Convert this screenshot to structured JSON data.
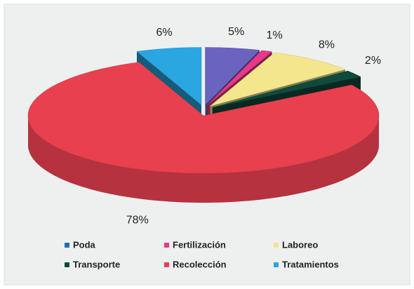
{
  "chart_data": {
    "type": "pie3d",
    "categories": [
      "Poda",
      "Fertilización",
      "Laboreo",
      "Transporte",
      "Recolección",
      "Tratamientos"
    ],
    "values": [
      5,
      1,
      8,
      2,
      78,
      6
    ],
    "value_labels": [
      "5%",
      "1%",
      "8%",
      "2%",
      "78%",
      "6%"
    ],
    "colors": [
      "#6a64c0",
      "#e8388a",
      "#f4e68c",
      "#0f4a3c",
      "#e8404f",
      "#2aa6e0"
    ],
    "legend_colors": [
      "#1f6fc0",
      "#e8388a",
      "#f4e68c",
      "#0f4a3c",
      "#e8404f",
      "#2aa6e0"
    ]
  }
}
